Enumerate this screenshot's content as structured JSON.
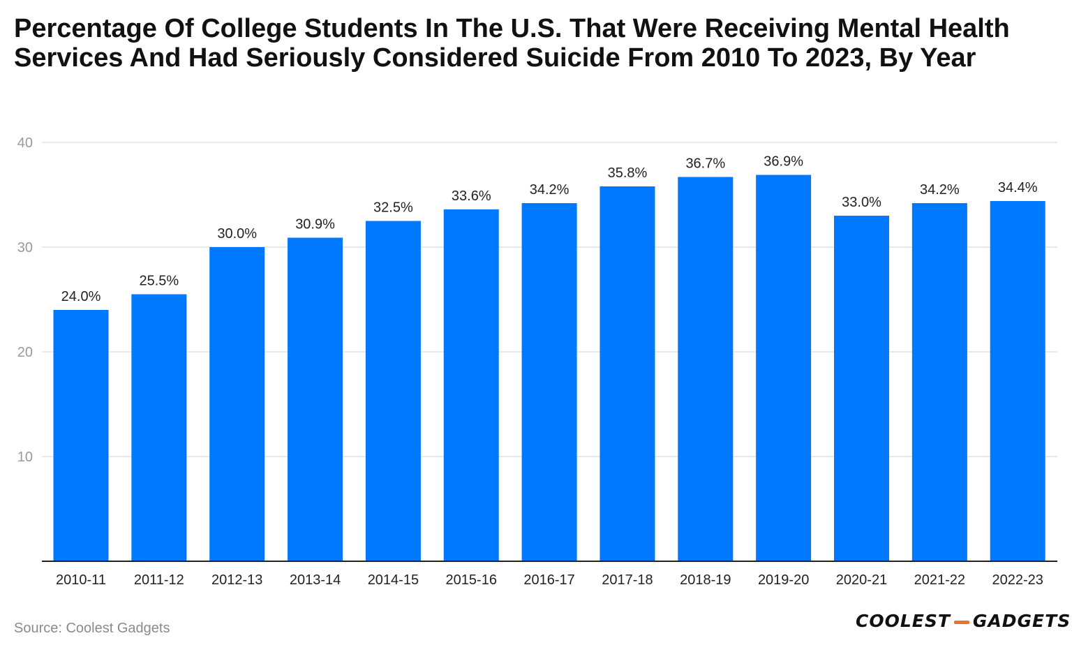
{
  "title": "Percentage Of College Students In The U.S. That Were Receiving Mental Health Services And Had Seriously Considered Suicide From 2010 To 2023, By Year",
  "source": "Source: Coolest Gadgets",
  "logo": {
    "left_word": "COOLEST",
    "right_word": "GADGETS",
    "accent_color": "#e8742c"
  },
  "colors": {
    "bar": "#0079ff",
    "grid": "#e2e2e2",
    "axis": "#222222",
    "tick_label": "#9a9a9a",
    "text": "#222222"
  },
  "chart_data": {
    "type": "bar",
    "title": "Percentage Of College Students In The U.S. That Were Receiving Mental Health Services And Had Seriously Considered Suicide From 2010 To 2023, By Year",
    "xlabel": "",
    "ylabel": "",
    "ylim": [
      0,
      40
    ],
    "yticks": [
      10,
      20,
      30,
      40
    ],
    "grid": true,
    "categories": [
      "2010-11",
      "2011-12",
      "2012-13",
      "2013-14",
      "2014-15",
      "2015-16",
      "2016-17",
      "2017-18",
      "2018-19",
      "2019-20",
      "2020-21",
      "2021-22",
      "2022-23"
    ],
    "values": [
      24.0,
      25.5,
      30.0,
      30.9,
      32.5,
      33.6,
      34.2,
      35.8,
      36.7,
      36.9,
      33.0,
      34.2,
      34.4
    ],
    "value_labels": [
      "24.0%",
      "25.5%",
      "30.0%",
      "30.9%",
      "32.5%",
      "33.6%",
      "34.2%",
      "35.8%",
      "36.7%",
      "36.9%",
      "33.0%",
      "34.2%",
      "34.4%"
    ]
  }
}
